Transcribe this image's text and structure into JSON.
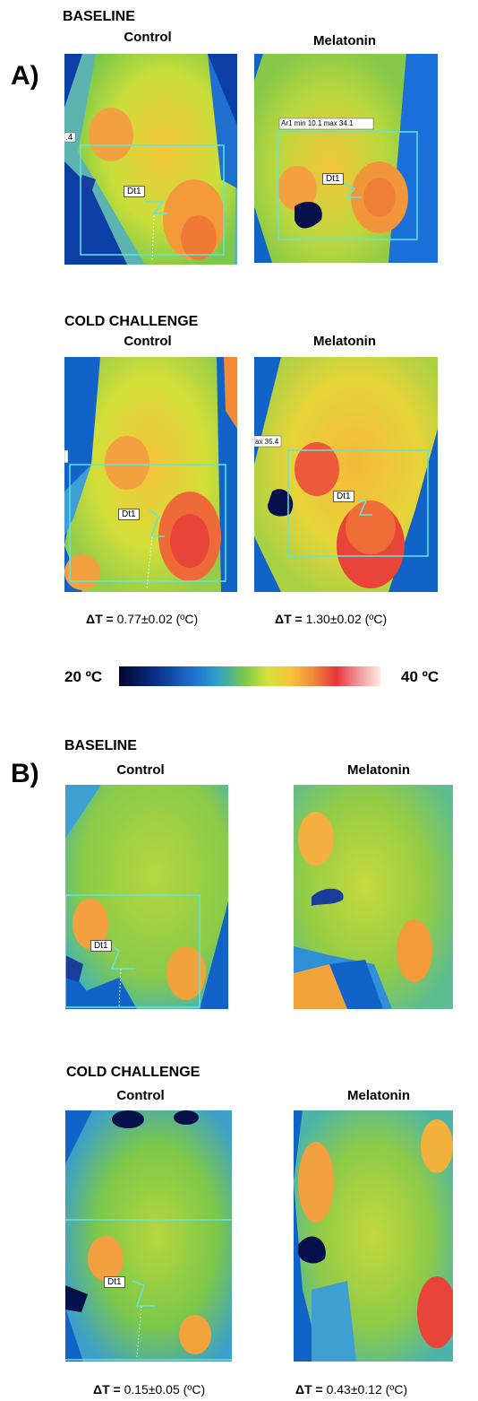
{
  "panelA": {
    "letter": "A)",
    "baseline": {
      "title": "BASELINE",
      "control": "Control",
      "melatonin": "Melatonin"
    },
    "cold": {
      "title": "COLD CHALLENGE",
      "control": "Control",
      "melatonin": "Melatonin"
    },
    "label_dt1": "Dt1",
    "label_ar1": "Ar1 min 10.1 max 34.1",
    "label_ax": "ax 35.4",
    "label_4": ".4",
    "delta_control": "0.77±0.02 (ºC)",
    "delta_melatonin": "1.30±0.02 (ºC)"
  },
  "scale": {
    "min": "20 ºC",
    "max": "40 ºC"
  },
  "panelB": {
    "letter": "B)",
    "baseline": {
      "title": "BASELINE",
      "control": "Control",
      "melatonin": "Melatonin"
    },
    "cold": {
      "title": "COLD CHALLENGE",
      "control": "Control",
      "melatonin": "Melatonin"
    },
    "label_dt1": "Dt1",
    "delta_control": "0.15±0.05 (ºC)",
    "delta_melatonin": "0.43±0.12 (ºC)"
  },
  "delta_symbol": "ΔT = "
}
